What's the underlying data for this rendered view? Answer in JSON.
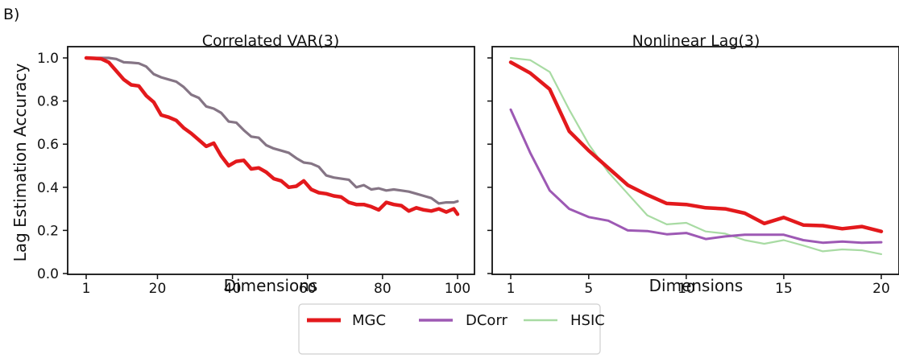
{
  "figure": {
    "panel_label": "B)",
    "legend": [
      {
        "name": "MGC",
        "color": "#e3191c"
      },
      {
        "name": "DCorr",
        "color": "#9d59b4"
      },
      {
        "name": "HSIC",
        "color": "#a8dba3"
      }
    ]
  },
  "chart_data": [
    {
      "type": "line",
      "title": "Correlated VAR(3)",
      "xlabel": "Dimensions",
      "ylabel": "Lag Estimation Accuracy",
      "xlim": [
        1,
        100
      ],
      "ylim": [
        0,
        1.0
      ],
      "xticks": [
        "1",
        "20",
        "40",
        "60",
        "80",
        "100"
      ],
      "yticks": [
        "0.0",
        "0.2",
        "0.4",
        "0.6",
        "0.8",
        "1.0"
      ],
      "legend_position": "bottom-center",
      "series": [
        {
          "name": "MGC",
          "color": "#e3191c",
          "x": [
            1,
            3,
            5,
            7,
            9,
            11,
            13,
            15,
            17,
            19,
            21,
            23,
            25,
            27,
            29,
            31,
            33,
            35,
            37,
            39,
            41,
            43,
            45,
            47,
            49,
            51,
            53,
            55,
            57,
            59,
            61,
            63,
            65,
            67,
            69,
            71,
            73,
            75,
            77,
            79,
            81,
            83,
            85,
            87,
            89,
            91,
            93,
            95,
            97,
            99,
            100
          ],
          "y": [
            1.0,
            0.998,
            0.996,
            0.98,
            0.94,
            0.9,
            0.875,
            0.87,
            0.825,
            0.795,
            0.735,
            0.725,
            0.71,
            0.675,
            0.65,
            0.62,
            0.59,
            0.605,
            0.545,
            0.5,
            0.52,
            0.525,
            0.485,
            0.49,
            0.47,
            0.44,
            0.43,
            0.4,
            0.405,
            0.43,
            0.39,
            0.375,
            0.37,
            0.36,
            0.355,
            0.33,
            0.32,
            0.32,
            0.31,
            0.295,
            0.33,
            0.32,
            0.315,
            0.29,
            0.305,
            0.295,
            0.29,
            0.3,
            0.285,
            0.3,
            0.275
          ]
        },
        {
          "name": "",
          "color": "#857585",
          "x": [
            1,
            3,
            5,
            7,
            9,
            11,
            13,
            15,
            17,
            19,
            21,
            23,
            25,
            27,
            29,
            31,
            33,
            35,
            37,
            39,
            41,
            43,
            45,
            47,
            49,
            51,
            53,
            55,
            57,
            59,
            61,
            63,
            65,
            67,
            69,
            71,
            73,
            75,
            77,
            79,
            81,
            83,
            85,
            87,
            89,
            91,
            93,
            95,
            97,
            99,
            100
          ],
          "y": [
            1.0,
            1.0,
            1.0,
            1.0,
            0.995,
            0.98,
            0.978,
            0.975,
            0.96,
            0.925,
            0.91,
            0.9,
            0.89,
            0.865,
            0.83,
            0.815,
            0.775,
            0.765,
            0.745,
            0.705,
            0.7,
            0.665,
            0.635,
            0.63,
            0.595,
            0.58,
            0.57,
            0.56,
            0.535,
            0.515,
            0.51,
            0.495,
            0.455,
            0.445,
            0.44,
            0.435,
            0.4,
            0.41,
            0.39,
            0.395,
            0.385,
            0.39,
            0.385,
            0.38,
            0.37,
            0.36,
            0.35,
            0.325,
            0.33,
            0.33,
            0.335
          ]
        }
      ]
    },
    {
      "type": "line",
      "title": "Nonlinear Lag(3)",
      "xlabel": "Dimensions",
      "ylabel": "",
      "xlim": [
        1,
        20
      ],
      "ylim": [
        0,
        1.0
      ],
      "xticks": [
        "1",
        "5",
        "10",
        "15",
        "20"
      ],
      "legend_position": "bottom-center",
      "series": [
        {
          "name": "MGC",
          "color": "#e3191c",
          "x": [
            1,
            2,
            3,
            4,
            5,
            6,
            7,
            8,
            9,
            10,
            11,
            12,
            13,
            14,
            15,
            16,
            17,
            18,
            19,
            20
          ],
          "y": [
            0.98,
            0.93,
            0.855,
            0.66,
            0.57,
            0.49,
            0.41,
            0.365,
            0.325,
            0.32,
            0.305,
            0.3,
            0.28,
            0.232,
            0.26,
            0.225,
            0.222,
            0.208,
            0.218,
            0.195
          ]
        },
        {
          "name": "DCorr",
          "color": "#9d59b4",
          "x": [
            1,
            2,
            3,
            4,
            5,
            6,
            7,
            8,
            9,
            10,
            11,
            12,
            13,
            14,
            15,
            16,
            17,
            18,
            19,
            20
          ],
          "y": [
            0.76,
            0.56,
            0.385,
            0.3,
            0.262,
            0.245,
            0.2,
            0.197,
            0.182,
            0.188,
            0.16,
            0.172,
            0.18,
            0.18,
            0.18,
            0.155,
            0.143,
            0.148,
            0.143,
            0.145
          ]
        },
        {
          "name": "HSIC",
          "color": "#a8dba3",
          "x": [
            1,
            2,
            3,
            4,
            5,
            6,
            7,
            8,
            9,
            10,
            11,
            12,
            13,
            14,
            15,
            16,
            17,
            18,
            19,
            20
          ],
          "y": [
            1.0,
            0.99,
            0.935,
            0.76,
            0.6,
            0.47,
            0.37,
            0.27,
            0.228,
            0.235,
            0.195,
            0.185,
            0.155,
            0.138,
            0.155,
            0.13,
            0.103,
            0.112,
            0.108,
            0.09
          ]
        }
      ]
    }
  ]
}
